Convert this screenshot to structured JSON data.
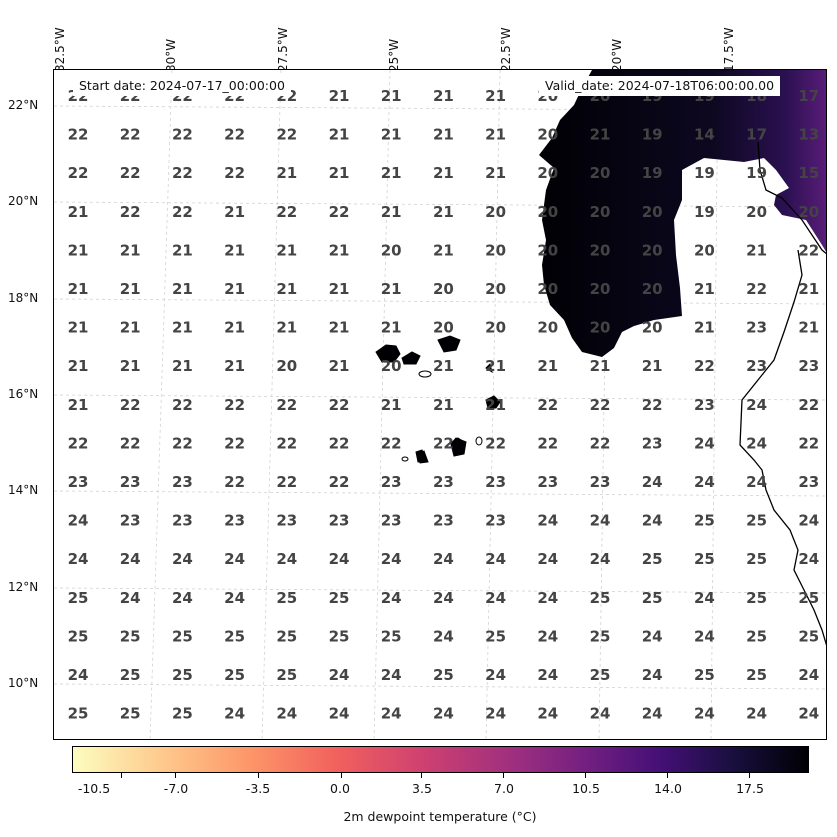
{
  "map": {
    "longitude_labels": [
      "32.5°W",
      "30°W",
      "27.5°W",
      "25°W",
      "22.5°W",
      "20°W",
      "17.5°W"
    ],
    "latitude_labels": [
      "22°N",
      "20°N",
      "18°N",
      "16°N",
      "14°N",
      "12°N",
      "10°N"
    ],
    "start_date": "Start date: 2024-07-17_00:00:00",
    "valid_date": "Valid_date: 2024-07-18T06:00:00.00",
    "value_grid": [
      [
        "22",
        "22",
        "22",
        "22",
        "22",
        "21",
        "21",
        "21",
        "21",
        "20",
        "20",
        "19",
        "19",
        "18",
        "17"
      ],
      [
        "22",
        "22",
        "22",
        "22",
        "22",
        "21",
        "21",
        "21",
        "21",
        "20",
        "21",
        "19",
        "14",
        "17",
        "13"
      ],
      [
        "22",
        "22",
        "22",
        "22",
        "21",
        "21",
        "21",
        "21",
        "21",
        "20",
        "20",
        "19",
        "19",
        "19",
        "15"
      ],
      [
        "21",
        "22",
        "22",
        "21",
        "22",
        "22",
        "21",
        "21",
        "20",
        "20",
        "20",
        "20",
        "19",
        "20",
        "20"
      ],
      [
        "21",
        "21",
        "21",
        "21",
        "21",
        "21",
        "20",
        "21",
        "20",
        "20",
        "20",
        "20",
        "20",
        "21",
        "22"
      ],
      [
        "21",
        "21",
        "21",
        "21",
        "21",
        "21",
        "21",
        "20",
        "20",
        "20",
        "20",
        "20",
        "21",
        "22",
        "21"
      ],
      [
        "21",
        "21",
        "21",
        "21",
        "21",
        "21",
        "21",
        "20",
        "20",
        "20",
        "20",
        "20",
        "21",
        "23",
        "21"
      ],
      [
        "21",
        "21",
        "21",
        "21",
        "20",
        "21",
        "20",
        "21",
        "21",
        "21",
        "21",
        "21",
        "22",
        "23",
        "23"
      ],
      [
        "21",
        "22",
        "22",
        "22",
        "22",
        "22",
        "21",
        "21",
        "21",
        "22",
        "22",
        "22",
        "23",
        "24",
        "22"
      ],
      [
        "22",
        "22",
        "22",
        "22",
        "22",
        "22",
        "22",
        "22",
        "22",
        "22",
        "22",
        "23",
        "24",
        "24",
        "22"
      ],
      [
        "23",
        "23",
        "23",
        "22",
        "22",
        "22",
        "23",
        "23",
        "23",
        "23",
        "23",
        "24",
        "24",
        "24",
        "23"
      ],
      [
        "24",
        "23",
        "23",
        "23",
        "23",
        "23",
        "23",
        "23",
        "23",
        "24",
        "24",
        "24",
        "25",
        "25",
        "24"
      ],
      [
        "24",
        "24",
        "24",
        "24",
        "24",
        "24",
        "24",
        "24",
        "24",
        "24",
        "24",
        "25",
        "25",
        "25",
        "24"
      ],
      [
        "25",
        "24",
        "24",
        "24",
        "25",
        "25",
        "24",
        "24",
        "24",
        "24",
        "25",
        "25",
        "24",
        "25",
        "25"
      ],
      [
        "25",
        "25",
        "25",
        "25",
        "25",
        "25",
        "25",
        "24",
        "25",
        "24",
        "25",
        "24",
        "24",
        "25",
        "25"
      ],
      [
        "24",
        "25",
        "25",
        "25",
        "25",
        "24",
        "24",
        "25",
        "24",
        "24",
        "25",
        "24",
        "25",
        "25",
        "24"
      ],
      [
        "25",
        "25",
        "25",
        "24",
        "24",
        "24",
        "24",
        "24",
        "24",
        "24",
        "24",
        "24",
        "24",
        "24",
        "24"
      ]
    ]
  },
  "colorbar": {
    "tick_labels": [
      "-10.5",
      "-7.0",
      "-3.5",
      "0.0",
      "3.5",
      "7.0",
      "10.5",
      "14.0",
      "17.5"
    ],
    "title": "2m dewpoint temperature (°C)"
  },
  "colors": {
    "land": "#000004",
    "grid_value_text": "#444444",
    "colormap": "magma_r"
  }
}
